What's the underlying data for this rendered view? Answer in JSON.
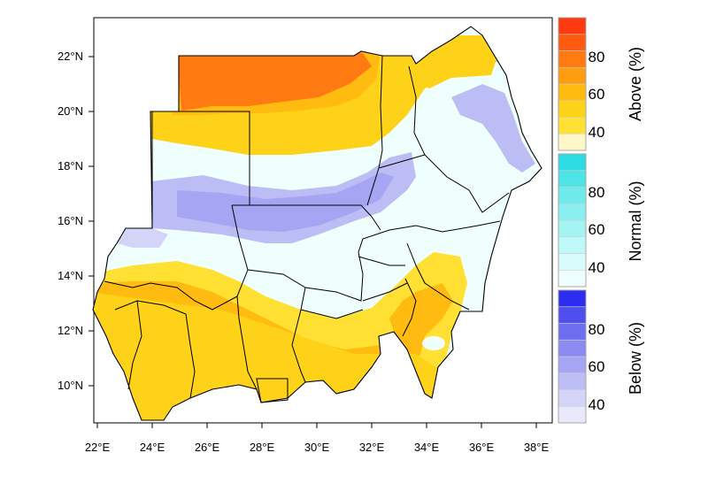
{
  "map": {
    "x_ticks": [
      "22°E",
      "24°E",
      "26°E",
      "28°E",
      "30°E",
      "32°E",
      "34°E",
      "36°E",
      "38°E"
    ],
    "y_ticks": [
      "22°N",
      "20°N",
      "18°N",
      "16°N",
      "14°N",
      "12°N",
      "10°N"
    ]
  },
  "legend": {
    "panels": [
      {
        "title": "Above (%)",
        "labels": [
          "40",
          "60",
          "80"
        ],
        "colors": [
          "#fff7c8",
          "#ffe033",
          "#ffd21a",
          "#ffbb10",
          "#ff9c10",
          "#ff7a10",
          "#ff5a10",
          "#ff3a10"
        ]
      },
      {
        "title": "Normal (%)",
        "labels": [
          "40",
          "60",
          "80"
        ],
        "colors": [
          "#effffe",
          "#d8fcfc",
          "#bff8f8",
          "#a5f4f4",
          "#8aeff0",
          "#6eeaea",
          "#4ee3e6",
          "#2cdce2"
        ]
      },
      {
        "title": "Below (%)",
        "labels": [
          "40",
          "60",
          "80"
        ],
        "colors": [
          "#e9e9fb",
          "#d4d4f8",
          "#bdbdf6",
          "#a5a5f4",
          "#8b8bf2",
          "#6e6ef1",
          "#4f4ff0",
          "#2d2df0"
        ]
      }
    ]
  }
}
